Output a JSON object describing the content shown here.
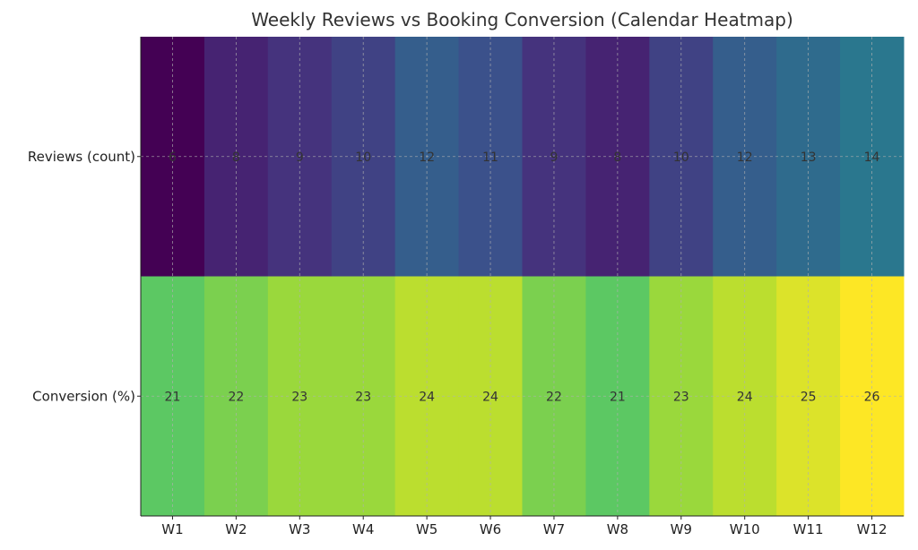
{
  "chart_data": {
    "type": "heatmap",
    "title": "Weekly Reviews vs Booking Conversion (Calendar Heatmap)",
    "x_categories": [
      "W1",
      "W2",
      "W3",
      "W4",
      "W5",
      "W6",
      "W7",
      "W8",
      "W9",
      "W10",
      "W11",
      "W12"
    ],
    "y_categories": [
      "Reviews (count)",
      "Conversion (%)"
    ],
    "values": [
      [
        6,
        8,
        9,
        10,
        12,
        11,
        9,
        8,
        10,
        12,
        13,
        14
      ],
      [
        21,
        22,
        23,
        23,
        24,
        24,
        22,
        21,
        23,
        24,
        25,
        26
      ]
    ],
    "colormap": "viridis",
    "color_range": [
      6,
      26
    ],
    "grid": true,
    "annotations": true
  }
}
